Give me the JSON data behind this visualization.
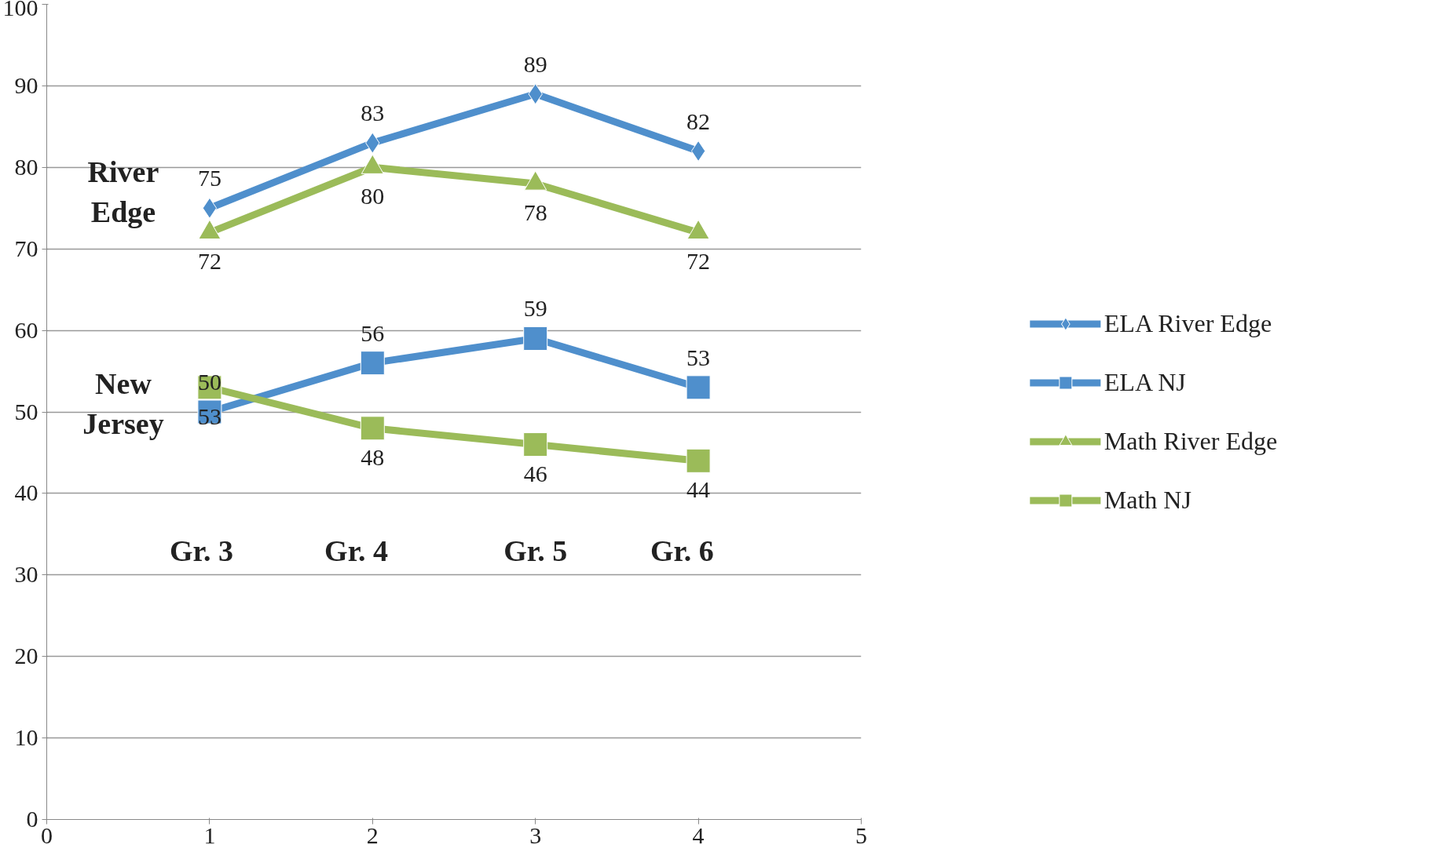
{
  "chart_data": {
    "type": "line",
    "x": [
      1,
      2,
      3,
      4
    ],
    "series": [
      {
        "name": "ELA River Edge",
        "color": "#4f8fcc",
        "values": [
          75,
          83,
          89,
          82
        ],
        "marker": "diamond"
      },
      {
        "name": "ELA NJ",
        "color": "#4f8fcc",
        "values": [
          50,
          56,
          59,
          53
        ],
        "marker": "square"
      },
      {
        "name": "Math River Edge",
        "color": "#9bbb59",
        "values": [
          72,
          80,
          78,
          72
        ],
        "marker": "triangle"
      },
      {
        "name": "Math NJ",
        "color": "#9bbb59",
        "values": [
          53,
          48,
          46,
          44
        ],
        "marker": "square"
      }
    ],
    "xlim": [
      0,
      5
    ],
    "xticks": [
      0,
      1,
      2,
      3,
      4,
      5
    ],
    "ylim": [
      0,
      100
    ],
    "yticks": [
      0,
      10,
      20,
      30,
      40,
      50,
      60,
      70,
      80,
      90,
      100
    ],
    "grid": "y",
    "legend": "right",
    "data_labels": true,
    "annotations": [
      "River Edge",
      "New Jersey",
      "Gr. 3",
      "Gr. 4",
      "Gr. 5",
      "Gr. 6"
    ]
  }
}
